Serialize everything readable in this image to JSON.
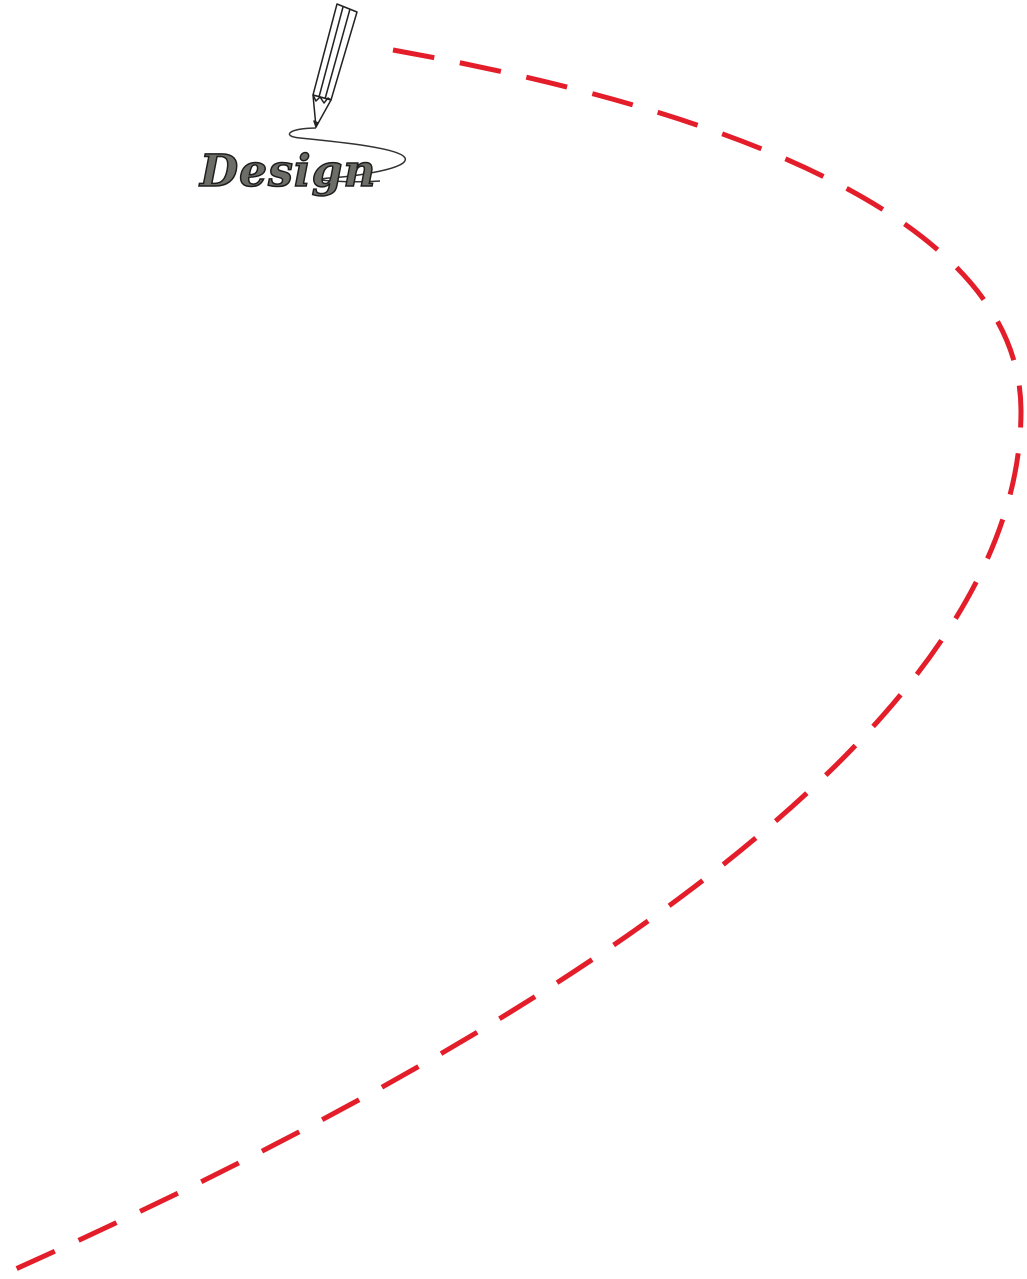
{
  "label": "Design"
}
